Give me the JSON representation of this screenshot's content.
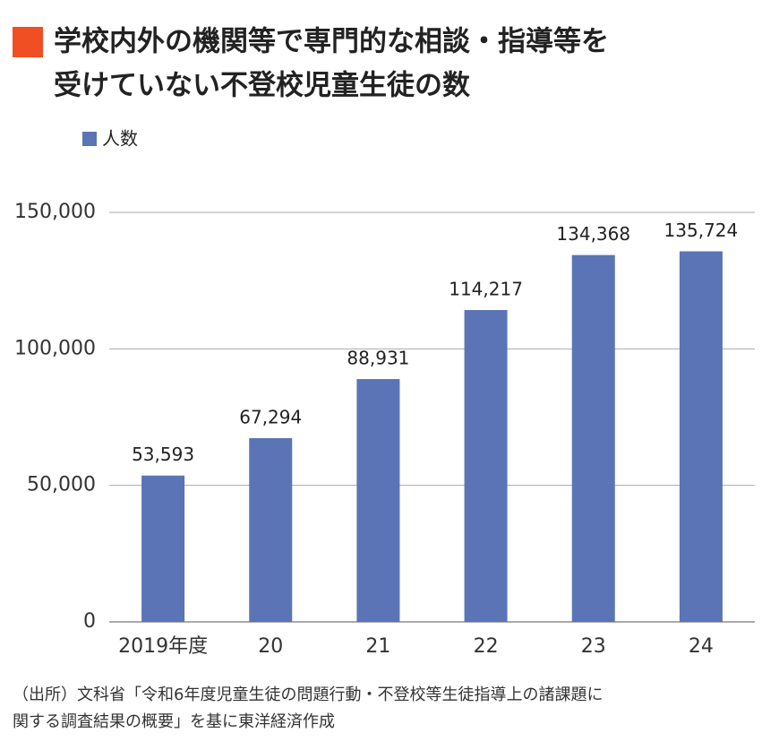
{
  "chart_data": {
    "type": "bar",
    "title": [
      "学校内外の機関等で専門的な相談・指導等を",
      "受けていない不登校児童生徒の数"
    ],
    "series": [
      {
        "name": "人数",
        "color": "#5a74b5",
        "values": [
          53593,
          67294,
          88931,
          114217,
          134368,
          135724
        ],
        "value_labels": [
          "53,593",
          "67,294",
          "88,931",
          "114,217",
          "134,368",
          "135,724"
        ]
      }
    ],
    "categories": [
      "2019年度",
      "20",
      "21",
      "22",
      "23",
      "24"
    ],
    "ylim": [
      0,
      150000
    ],
    "yticks": [
      0,
      {
        "value": 50000,
        "label": "50,000"
      },
      {
        "value": 100000,
        "label": "100,000"
      },
      {
        "value": 150000,
        "label": "150,000"
      }
    ],
    "grid": true,
    "source": [
      "（出所）文科省「令和6年度児童生徒の問題行動・不登校等生徒指導上の諸課題に",
      "関する調査結果の概要」を基に東洋経済作成"
    ]
  }
}
